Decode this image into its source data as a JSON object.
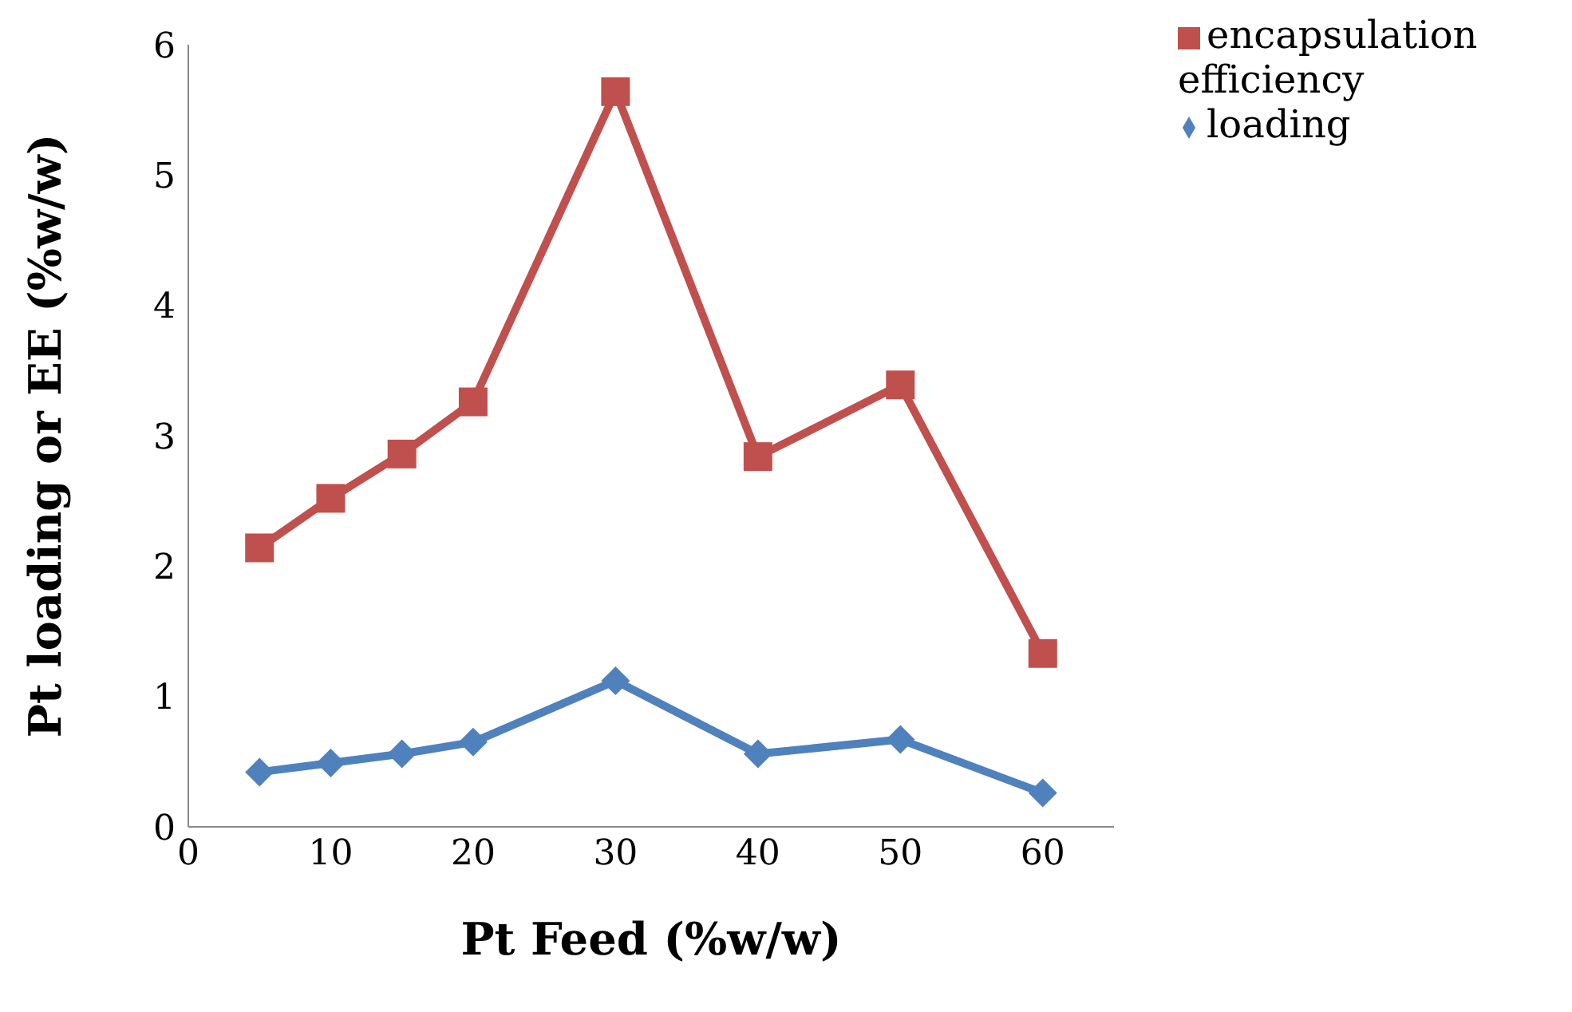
{
  "chart_data": {
    "type": "line",
    "xlabel": "Pt Feed (%w/w)",
    "ylabel": "Pt loading or EE (%w/w)",
    "x": [
      5,
      10,
      15,
      20,
      30,
      40,
      50,
      60
    ],
    "series": [
      {
        "name": "loading",
        "color": "#4f81bd",
        "marker": "diamond",
        "values": [
          0.42,
          0.49,
          0.56,
          0.65,
          1.12,
          0.56,
          0.67,
          0.26
        ]
      },
      {
        "name": "encapsulation efficiency",
        "color": "#c0504d",
        "marker": "square",
        "values": [
          2.14,
          2.52,
          2.86,
          3.26,
          5.64,
          2.84,
          3.39,
          1.33
        ]
      }
    ],
    "xlim": [
      0,
      65
    ],
    "xticks": [
      0,
      10,
      20,
      30,
      40,
      50,
      60
    ],
    "ylim": [
      0,
      6
    ],
    "yticks": [
      0,
      1,
      2,
      3,
      4,
      5,
      6
    ],
    "grid": false,
    "legend": "top right"
  }
}
